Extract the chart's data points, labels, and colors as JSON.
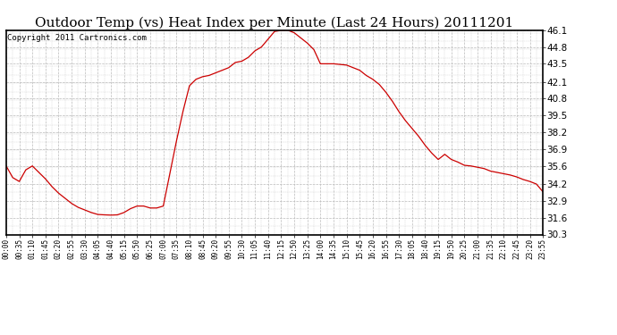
{
  "title": "Outdoor Temp (vs) Heat Index per Minute (Last 24 Hours) 20111201",
  "copyright_text": "Copyright 2011 Cartronics.com",
  "line_color": "#cc0000",
  "background_color": "#ffffff",
  "grid_color": "#bbbbbb",
  "y_ticks": [
    30.3,
    31.6,
    32.9,
    34.2,
    35.6,
    36.9,
    38.2,
    39.5,
    40.8,
    42.1,
    43.5,
    44.8,
    46.1
  ],
  "ylim": [
    30.3,
    46.1
  ],
  "x_tick_labels": [
    "00:00",
    "00:35",
    "01:10",
    "01:45",
    "02:20",
    "02:55",
    "03:30",
    "04:05",
    "04:40",
    "05:15",
    "05:50",
    "06:25",
    "07:00",
    "07:35",
    "08:10",
    "08:45",
    "09:20",
    "09:55",
    "10:30",
    "11:05",
    "11:40",
    "12:15",
    "12:50",
    "13:25",
    "14:00",
    "14:35",
    "15:10",
    "15:45",
    "16:20",
    "16:55",
    "17:30",
    "18:05",
    "18:40",
    "19:15",
    "19:50",
    "20:25",
    "21:00",
    "21:35",
    "22:10",
    "22:45",
    "23:20",
    "23:55"
  ],
  "curve_y": [
    35.6,
    34.7,
    34.4,
    35.3,
    35.6,
    35.1,
    34.6,
    34.0,
    33.5,
    33.1,
    32.7,
    32.4,
    32.2,
    32.0,
    31.85,
    31.82,
    31.8,
    31.82,
    32.0,
    32.3,
    32.5,
    32.5,
    32.35,
    32.35,
    32.5,
    35.0,
    37.5,
    39.8,
    41.8,
    42.3,
    42.5,
    42.6,
    42.8,
    43.0,
    43.2,
    43.6,
    43.7,
    44.0,
    44.5,
    44.8,
    45.4,
    46.0,
    46.08,
    46.1,
    45.9,
    45.5,
    45.1,
    44.6,
    43.5,
    43.5,
    43.5,
    43.45,
    43.4,
    43.2,
    43.0,
    42.6,
    42.3,
    41.9,
    41.3,
    40.6,
    39.8,
    39.1,
    38.5,
    37.9,
    37.2,
    36.6,
    36.1,
    36.5,
    36.1,
    35.9,
    35.65,
    35.6,
    35.5,
    35.4,
    35.2,
    35.1,
    35.0,
    34.9,
    34.75,
    34.55,
    34.4,
    34.2,
    33.6
  ],
  "title_fontsize": 11,
  "copyright_fontsize": 6.5,
  "ytick_fontsize": 7.5,
  "xtick_fontsize": 5.5
}
